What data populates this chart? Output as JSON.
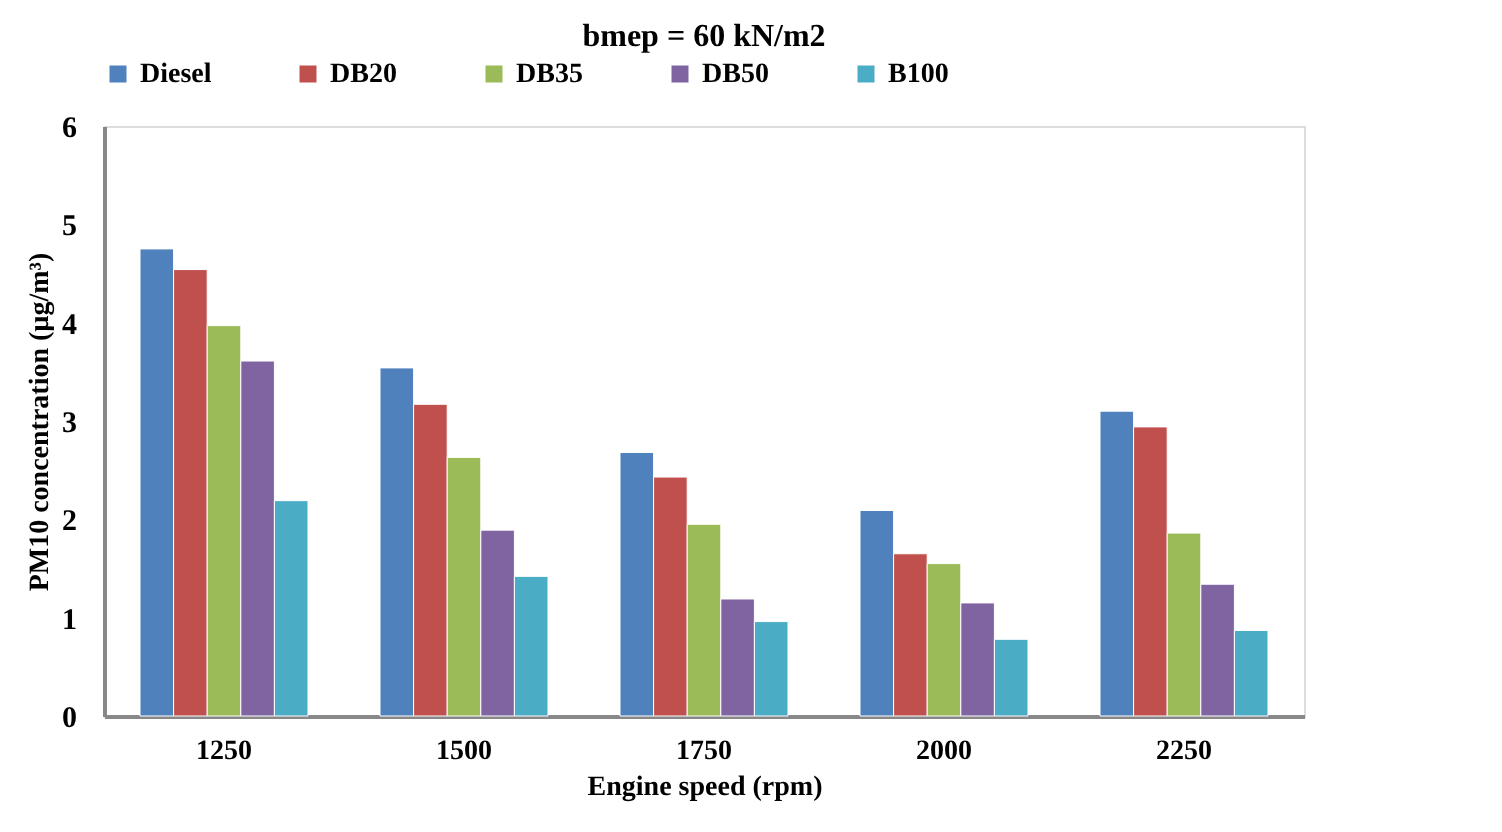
{
  "chart_data": {
    "type": "bar",
    "title": "bmep = 60 kN/m2",
    "xlabel": "Engine speed (rpm)",
    "ylabel": "PM10 concentration (µg/m³)",
    "categories": [
      "1250",
      "1500",
      "1750",
      "2000",
      "2250"
    ],
    "series": [
      {
        "name": "Diesel",
        "color": "#4f81bd",
        "values": [
          4.75,
          3.54,
          2.68,
          2.09,
          3.1
        ]
      },
      {
        "name": "DB20",
        "color": "#c0504d",
        "values": [
          4.54,
          3.17,
          2.43,
          1.65,
          2.94
        ]
      },
      {
        "name": "DB35",
        "color": "#9bbb59",
        "values": [
          3.97,
          2.63,
          1.95,
          1.55,
          1.86
        ]
      },
      {
        "name": "DB50",
        "color": "#8064a2",
        "values": [
          3.61,
          1.89,
          1.19,
          1.15,
          1.34
        ]
      },
      {
        "name": "B100",
        "color": "#4bacc6",
        "values": [
          2.19,
          1.42,
          0.96,
          0.78,
          0.87
        ]
      }
    ],
    "ylim": [
      0,
      6
    ],
    "yticks": [
      0,
      1,
      2,
      3,
      4,
      5,
      6
    ],
    "grid": false,
    "legend": "top"
  }
}
